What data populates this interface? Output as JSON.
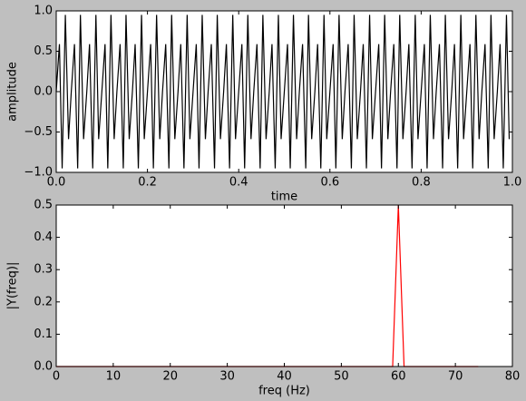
{
  "chart_data": [
    {
      "type": "line",
      "xlabel": "time",
      "ylabel": "amplitude",
      "xlim": [
        0,
        1
      ],
      "ylim": [
        -1,
        1
      ],
      "xticks": [
        {
          "value": 0,
          "label": "0.0"
        },
        {
          "value": 0.2,
          "label": "0.2"
        },
        {
          "value": 0.4,
          "label": "0.4"
        },
        {
          "value": 0.6,
          "label": "0.6"
        },
        {
          "value": 0.8,
          "label": "0.8"
        },
        {
          "value": 1,
          "label": "1.0"
        }
      ],
      "yticks": [
        {
          "value": -1,
          "label": "−1.0"
        },
        {
          "value": -0.5,
          "label": "−0.5"
        },
        {
          "value": 0,
          "label": "0.0"
        },
        {
          "value": 0.5,
          "label": "0.5"
        },
        {
          "value": 1,
          "label": "1.0"
        }
      ],
      "x": [
        0,
        0.007,
        0.013,
        0.02,
        0.027,
        0.033,
        0.04,
        0.047,
        0.053,
        0.06,
        0.067,
        0.073,
        0.08,
        0.087,
        0.093,
        0.1,
        0.107,
        0.113,
        0.12,
        0.127,
        0.133,
        0.14,
        0.147,
        0.153,
        0.16,
        0.167,
        0.173,
        0.18,
        0.187,
        0.193,
        0.2,
        0.207,
        0.213,
        0.22,
        0.227,
        0.233,
        0.24,
        0.247,
        0.253,
        0.26,
        0.267,
        0.273,
        0.28,
        0.287,
        0.293,
        0.3,
        0.307,
        0.313,
        0.32,
        0.327,
        0.333,
        0.34,
        0.347,
        0.353,
        0.36,
        0.367,
        0.373,
        0.38,
        0.387,
        0.393,
        0.4,
        0.407,
        0.413,
        0.42,
        0.427,
        0.433,
        0.44,
        0.447,
        0.453,
        0.46,
        0.467,
        0.473,
        0.48,
        0.487,
        0.493,
        0.5,
        0.507,
        0.513,
        0.52,
        0.527,
        0.533,
        0.54,
        0.547,
        0.553,
        0.56,
        0.567,
        0.573,
        0.58,
        0.587,
        0.593,
        0.6,
        0.607,
        0.613,
        0.62,
        0.627,
        0.633,
        0.64,
        0.647,
        0.653,
        0.66,
        0.667,
        0.673,
        0.68,
        0.687,
        0.693,
        0.7,
        0.707,
        0.713,
        0.72,
        0.727,
        0.733,
        0.74,
        0.747,
        0.753,
        0.76,
        0.767,
        0.773,
        0.78,
        0.787,
        0.793,
        0.8,
        0.807,
        0.813,
        0.82,
        0.827,
        0.833,
        0.84,
        0.847,
        0.853,
        0.86,
        0.867,
        0.873,
        0.88,
        0.887,
        0.893,
        0.9,
        0.907,
        0.913,
        0.92,
        0.927,
        0.933,
        0.94,
        0.947,
        0.953,
        0.96,
        0.967,
        0.973,
        0.98,
        0.987,
        0.993
      ],
      "series": [
        {
          "color": "#000000",
          "values": [
            0,
            0.588,
            -0.951,
            0.951,
            -0.588,
            0,
            0.588,
            -0.951,
            0.951,
            -0.588,
            0,
            0.588,
            -0.951,
            0.951,
            -0.588,
            0,
            0.588,
            -0.951,
            0.951,
            -0.588,
            0,
            0.588,
            -0.951,
            0.951,
            -0.588,
            0,
            0.588,
            -0.951,
            0.951,
            -0.588,
            0,
            0.588,
            -0.951,
            0.951,
            -0.588,
            0,
            0.588,
            -0.951,
            0.951,
            -0.588,
            0,
            0.588,
            -0.951,
            0.951,
            -0.588,
            0,
            0.588,
            -0.951,
            0.951,
            -0.588,
            0,
            0.588,
            -0.951,
            0.951,
            -0.588,
            0,
            0.588,
            -0.951,
            0.951,
            -0.588,
            0,
            0.588,
            -0.951,
            0.951,
            -0.588,
            0,
            0.588,
            -0.951,
            0.951,
            -0.588,
            0,
            0.588,
            -0.951,
            0.951,
            -0.588,
            0,
            0.588,
            -0.951,
            0.951,
            -0.588,
            0,
            0.588,
            -0.951,
            0.951,
            -0.588,
            0,
            0.588,
            -0.951,
            0.951,
            -0.588,
            0,
            0.588,
            -0.951,
            0.951,
            -0.588,
            0,
            0.588,
            -0.951,
            0.951,
            -0.588,
            0,
            0.588,
            -0.951,
            0.951,
            -0.588,
            0,
            0.588,
            -0.951,
            0.951,
            -0.588,
            0,
            0.588,
            -0.951,
            0.951,
            -0.588,
            0,
            0.588,
            -0.951,
            0.951,
            -0.588,
            0,
            0.588,
            -0.951,
            0.951,
            -0.588,
            0,
            0.588,
            -0.951,
            0.951,
            -0.588,
            0,
            0.588,
            -0.951,
            0.951,
            -0.588,
            0,
            0.588,
            -0.951,
            0.951,
            -0.588,
            0,
            0.588,
            -0.951,
            0.951,
            -0.588,
            0,
            0.588,
            -0.951,
            0.951,
            -0.588
          ]
        }
      ]
    },
    {
      "type": "line",
      "xlabel": "freq (Hz)",
      "ylabel": "|Y(freq)|",
      "xlim": [
        0,
        80
      ],
      "ylim": [
        0,
        0.5
      ],
      "xticks": [
        0,
        10,
        20,
        30,
        40,
        50,
        60,
        70,
        80
      ],
      "yticks": [
        {
          "value": 0,
          "label": "0.0"
        },
        {
          "value": 0.1,
          "label": "0.1"
        },
        {
          "value": 0.2,
          "label": "0.2"
        },
        {
          "value": 0.3,
          "label": "0.3"
        },
        {
          "value": 0.4,
          "label": "0.4"
        },
        {
          "value": 0.5,
          "label": "0.5"
        }
      ],
      "x": [
        0,
        1,
        2,
        3,
        4,
        5,
        6,
        7,
        8,
        9,
        10,
        11,
        12,
        13,
        14,
        15,
        16,
        17,
        18,
        19,
        20,
        21,
        22,
        23,
        24,
        25,
        26,
        27,
        28,
        29,
        30,
        31,
        32,
        33,
        34,
        35,
        36,
        37,
        38,
        39,
        40,
        41,
        42,
        43,
        44,
        45,
        46,
        47,
        48,
        49,
        50,
        51,
        52,
        53,
        54,
        55,
        56,
        57,
        58,
        59,
        60,
        61,
        62,
        63,
        64,
        65,
        66,
        67,
        68,
        69,
        70,
        71,
        72,
        73,
        74
      ],
      "series": [
        {
          "color": "#ff0000",
          "values": [
            0,
            0,
            0,
            0,
            0,
            0,
            0,
            0,
            0,
            0,
            0,
            0,
            0,
            0,
            0,
            0,
            0,
            0,
            0,
            0,
            0,
            0,
            0,
            0,
            0,
            0,
            0,
            0,
            0,
            0,
            0,
            0,
            0,
            0,
            0,
            0,
            0,
            0,
            0,
            0,
            0,
            0,
            0,
            0,
            0,
            0,
            0,
            0,
            0,
            0,
            0,
            0,
            0,
            0,
            0,
            0,
            0,
            0,
            0,
            0,
            0.5,
            0,
            0,
            0,
            0,
            0,
            0,
            0,
            0,
            0,
            0,
            0,
            0,
            0,
            0
          ]
        }
      ]
    }
  ]
}
